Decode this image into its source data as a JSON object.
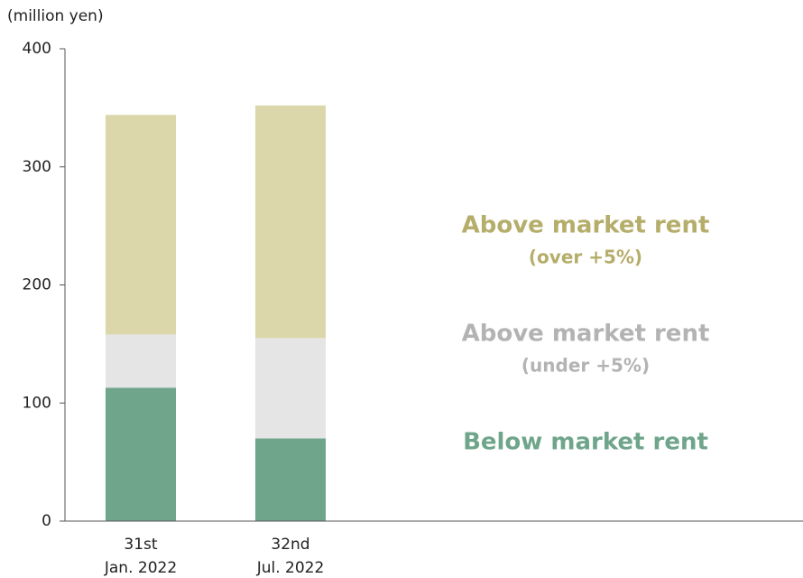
{
  "chart_data": {
    "type": "stacked_bar",
    "y_axis_label": "(million yen)",
    "categories": [
      [
        "31st",
        "Jan. 2022"
      ],
      [
        "32nd",
        "Jul. 2022"
      ]
    ],
    "series": [
      {
        "name": [
          "Below market rent"
        ],
        "color": "#6fa58b",
        "label_color": "#6fa58b",
        "values": [
          113,
          70
        ]
      },
      {
        "name": [
          "Above market rent",
          "(under +5%)"
        ],
        "color": "#e5e5e5",
        "label_color": "#b3b3b3",
        "values": [
          45,
          85
        ]
      },
      {
        "name": [
          "Above market rent",
          "(over +5%)"
        ],
        "color": "#dbd7aa",
        "label_color": "#b5ad6a",
        "values": [
          186,
          197
        ]
      }
    ],
    "ylim": [
      0,
      400
    ],
    "yticks": [
      0,
      100,
      200,
      300,
      400
    ]
  }
}
